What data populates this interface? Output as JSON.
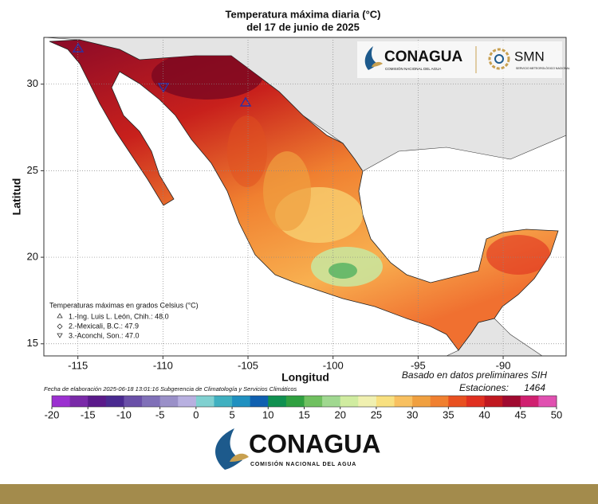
{
  "title": "Temperatura máxima diaria (°C)",
  "subtitle": "del 17 de junio de 2025",
  "map": {
    "xlabel": "Longitud",
    "ylabel": "Latitud",
    "xlim": [
      -117,
      -86.3
    ],
    "ylim": [
      14.3,
      32.7
    ],
    "xticks": [
      -115,
      -110,
      -105,
      -100,
      -95,
      -90
    ],
    "yticks": [
      15,
      20,
      25,
      30
    ]
  },
  "legend": {
    "title": "Temperaturas máximas en grados Celsius (°C)",
    "entries": [
      "1.-Ing. Luis L. León, Chih.: 48.0",
      "2.-Mexicali, B.C.: 47.9",
      "3.-Aconchi, Son.: 47.0"
    ]
  },
  "note_source": "Basado en datos preliminares SIH",
  "note_stations_label": "Estaciones:",
  "note_stations": 1464,
  "footer": "Fecha de elaboración 2025-06-18 13:01:16 Subgerencia de Climatología y Servicios Climáticos",
  "colorbar": {
    "range": [
      -20,
      50
    ],
    "step": 2.5,
    "ticks": [
      -20,
      -15,
      -10,
      -5,
      0,
      5,
      10,
      15,
      20,
      25,
      30,
      35,
      40,
      45,
      50
    ],
    "colors": [
      "#9b30d0",
      "#7a2aa8",
      "#5a1a8a",
      "#4a2a90",
      "#6a50a8",
      "#8070b8",
      "#9a90c8",
      "#b8b0e0",
      "#80d0d0",
      "#40b0c0",
      "#2090c0",
      "#1060b0",
      "#109050",
      "#30a040",
      "#70c060",
      "#a0d890",
      "#d0eca0",
      "#f0f0b0",
      "#f8e080",
      "#f8c060",
      "#f0a040",
      "#f08030",
      "#e85020",
      "#e03020",
      "#c01820",
      "#a00a30",
      "#d02070",
      "#e050b0"
    ]
  },
  "logo_top": {
    "name": "CONAGUA",
    "sub": "COMISIÓN NACIONAL DEL AGUA",
    "smn": "SMN",
    "smn_sub": "SERVICIO METEOROLÓGICO NACIONAL"
  },
  "logo_bottom": {
    "name": "CONAGUA",
    "sub": "COMISIÓN NACIONAL DEL AGUA"
  }
}
